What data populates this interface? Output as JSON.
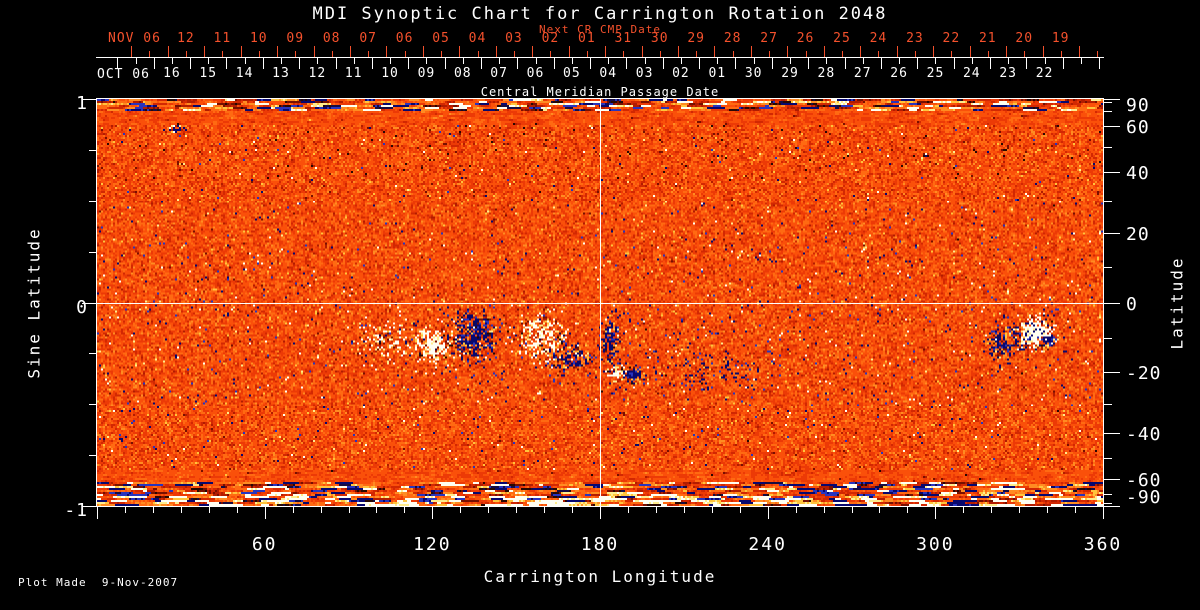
{
  "header": {
    "title": "MDI Synoptic Chart for Carrington Rotation 2048"
  },
  "colors": {
    "background": "#000000",
    "foreground": "#ffffff",
    "date_axis_red": "#f4512c",
    "magnetogram_base_orange": "#ec3a06",
    "positive_flux_strong": "#fffff2",
    "positive_flux_medium": "#ffe884",
    "negative_flux_strong": "#08086e",
    "negative_flux_medium": "#2834be"
  },
  "top_axes": {
    "next_cr": {
      "title": "Next CR CMP Date",
      "month_label": "NOV 06",
      "tick_labels": [
        "12",
        "11",
        "10",
        "09",
        "08",
        "07",
        "06",
        "05",
        "04",
        "03",
        "02",
        "01",
        "31",
        "30",
        "29",
        "28",
        "27",
        "26",
        "25",
        "24",
        "23",
        "22",
        "21",
        "20",
        "19"
      ]
    },
    "cmp": {
      "month_label": "OCT 06",
      "axis_title": "Central Meridian Passage Date",
      "tick_labels": [
        "16",
        "15",
        "14",
        "13",
        "12",
        "11",
        "10",
        "09",
        "08",
        "07",
        "06",
        "05",
        "04",
        "03",
        "02",
        "01",
        "30",
        "29",
        "28",
        "27",
        "26",
        "25",
        "24",
        "23",
        "22"
      ]
    }
  },
  "axes": {
    "left": {
      "title": "Sine Latitude",
      "tick_labels": [
        "1",
        "0",
        "-1"
      ]
    },
    "right": {
      "title": "Latitude",
      "tick_labels": [
        "90",
        "60",
        "40",
        "20",
        "0",
        "-20",
        "-40",
        "-60",
        "-90"
      ]
    },
    "bottom": {
      "title": "Carrington Longitude",
      "tick_labels": [
        "60",
        "120",
        "180",
        "240",
        "300",
        "360"
      ]
    }
  },
  "footer": {
    "text": "Plot Made  9-Nov-2007"
  },
  "chart_data": {
    "type": "heatmap",
    "title": "MDI Synoptic Chart for Carrington Rotation 2048",
    "xlabel": "Carrington Longitude",
    "ylabel_left": "Sine Latitude",
    "ylabel_right": "Latitude",
    "x_range": [
      0,
      360
    ],
    "y_range_sine_latitude": [
      -1,
      1
    ],
    "x_ticks": [
      60,
      120,
      180,
      240,
      300,
      360
    ],
    "x_minor_tick_step": 10,
    "left_ticks": [
      1,
      0,
      -1
    ],
    "left_minor_tick_step_sine": 0.25,
    "right_ticks": [
      90,
      60,
      40,
      20,
      0,
      -20,
      -40,
      -60,
      -90
    ],
    "right_minor_ticks": [
      80,
      70,
      50,
      30,
      10,
      -10,
      -30,
      -50,
      -70,
      -80
    ],
    "top_axis_next_cr_cmp": {
      "month": "NOV 06",
      "days": [
        12,
        11,
        10,
        9,
        8,
        7,
        6,
        5,
        4,
        3,
        2,
        1,
        31,
        30,
        29,
        28,
        27,
        26,
        25,
        24,
        23,
        22,
        21,
        20,
        19
      ]
    },
    "top_axis_cmp": {
      "month": "OCT 06",
      "days": [
        16,
        15,
        14,
        13,
        12,
        11,
        10,
        9,
        8,
        7,
        6,
        5,
        4,
        3,
        2,
        1,
        30,
        29,
        28,
        27,
        26,
        25,
        24,
        23,
        22
      ],
      "label": "Central Meridian Passage Date"
    },
    "gridlines": {
      "longitude": 180,
      "sine_latitude": 0
    },
    "grid": "single white crosshair at 180 deg longitude and 0 latitude",
    "legend_position": "none",
    "colormap": "quiet sun = red/orange speckle; strong positive magnetic flux = white/yellow; strong negative flux = dark blue/black",
    "active_regions": [
      {
        "longitude": 119,
        "latitude": -12,
        "polarity": "positive plage (white/yellow) with negative (dark blue) flux on following side"
      },
      {
        "longitude": 158,
        "latitude": -11,
        "polarity": "mixed bipolar speckle, positive-dominant"
      },
      {
        "longitude": 184,
        "latitude": -16,
        "polarity": "negative-dominant cluster with compact white/black spot pair"
      },
      {
        "longitude": 215,
        "latitude": -14,
        "polarity": "sparse negative (blue) speckle trail"
      },
      {
        "longitude": 335,
        "latitude": -10,
        "polarity": "positive white plage with dark negative spot and blue web"
      },
      {
        "longitude": 29,
        "latitude": 60,
        "polarity": "small negative (dark) patch"
      }
    ],
    "poles": "horizontally streaked noisy bands at top (north) and bottom (south) edges; south edge shows bright white/yellow and blue streaks"
  }
}
